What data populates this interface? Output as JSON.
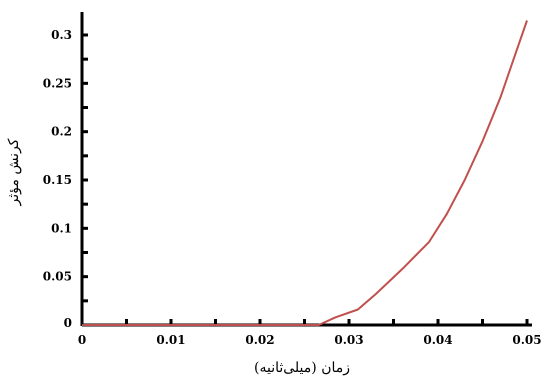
{
  "chart_data": {
    "type": "line",
    "title": "",
    "xlabel": "زمان (میلی‌ثانیه)",
    "ylabel": "کرنش مؤثر",
    "xlim": [
      0,
      0.05
    ],
    "ylim": [
      0,
      0.33
    ],
    "x_ticks": [
      0,
      0.01,
      0.02,
      0.03,
      0.04,
      0.05
    ],
    "x_tick_labels": [
      "0",
      "0.01",
      "0.02",
      "0.03",
      "0.04",
      "0.05"
    ],
    "y_ticks": [
      0,
      0.05,
      0.1,
      0.15,
      0.2,
      0.25,
      0.3
    ],
    "y_tick_labels": [
      "0",
      "0.05",
      "0.1",
      "0.15",
      "0.2",
      "0.25",
      "0.3"
    ],
    "grid": false,
    "legend": "none",
    "series": [
      {
        "color": "#c0504d",
        "x": [
          0,
          0.0266,
          0.0285,
          0.031,
          0.033,
          0.036,
          0.039,
          0.041,
          0.043,
          0.045,
          0.047,
          0.0485,
          0.05
        ],
        "y": [
          0,
          0,
          0.008,
          0.016,
          0.032,
          0.058,
          0.086,
          0.115,
          0.15,
          0.19,
          0.235,
          0.275,
          0.315
        ]
      }
    ]
  }
}
